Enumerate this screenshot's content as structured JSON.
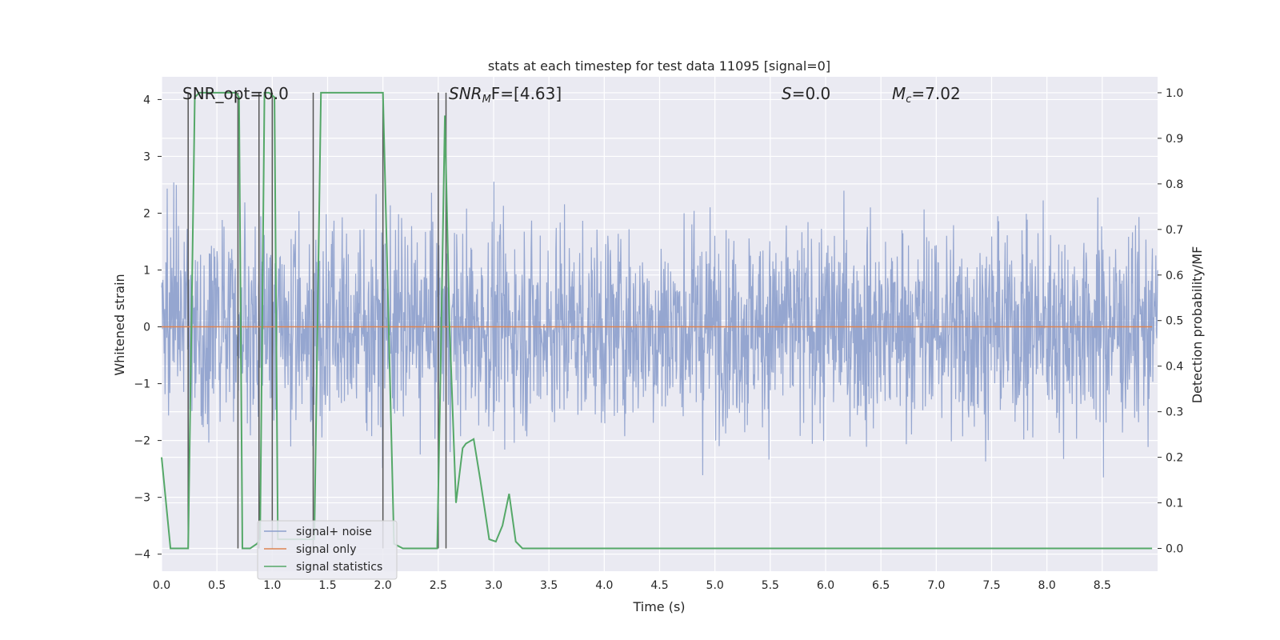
{
  "chart_data": {
    "type": "line",
    "title": "stats at each timestep for test data 11095 [signal=0]",
    "xlabel": "Time (s)",
    "ylabel_left": "Whitened strain",
    "ylabel_right": "Detection probability/MF",
    "xlim": [
      0.0,
      9.0
    ],
    "ylim_left": [
      -4.3,
      4.4
    ],
    "ylim_right": [
      -0.05,
      1.035
    ],
    "x_ticks": [
      "0.0",
      "0.5",
      "1.0",
      "1.5",
      "2.0",
      "2.5",
      "3.0",
      "3.5",
      "4.0",
      "4.5",
      "5.0",
      "5.5",
      "6.0",
      "6.5",
      "7.0",
      "7.5",
      "8.0",
      "8.5"
    ],
    "y_left_ticks": [
      "4",
      "3",
      "2",
      "1",
      "0",
      "−1",
      "−2",
      "−3",
      "−4"
    ],
    "y_right_ticks": [
      "1.0",
      "0.9",
      "0.8",
      "0.7",
      "0.6",
      "0.5",
      "0.4",
      "0.3",
      "0.2",
      "0.1",
      "0.0"
    ],
    "grid": true,
    "legend_position": "lower-left",
    "annotations": {
      "snr_opt": "SNR_opt=0.0",
      "snr_mf_label": "SNR",
      "snr_mf_sub": "M",
      "snr_mf_rest": "F=[4.63]",
      "s_label": "S",
      "s_rest": "=0.0",
      "mc_label": "M",
      "mc_sub": "c",
      "mc_rest": "=7.02"
    },
    "series": [
      {
        "name": "signal+ noise",
        "color": "#8c9fcc",
        "description_values": "whitened noise, approx range -3.9 to 3.9"
      },
      {
        "name": "signal only",
        "color": "#dd8452",
        "values": "constant 0"
      },
      {
        "name": "signal statistics",
        "color": "#55a868",
        "x": [
          0.0,
          0.08,
          0.15,
          0.24,
          0.3,
          0.34,
          0.5,
          0.67,
          0.7,
          0.73,
          0.8,
          0.86,
          0.89,
          0.93,
          0.97,
          1.02,
          1.05,
          1.38,
          1.44,
          1.55,
          2.0,
          2.1,
          2.18,
          2.3,
          2.49,
          2.52,
          2.56,
          2.6,
          2.66,
          2.72,
          2.75,
          2.82,
          2.88,
          2.96,
          3.02,
          3.08,
          3.14,
          3.2,
          3.26,
          3.35,
          9.0
        ],
        "y": [
          0.2,
          0.0,
          0.0,
          0.0,
          0.99,
          1.0,
          1.0,
          1.0,
          0.99,
          0.0,
          0.0,
          0.01,
          0.02,
          1.0,
          1.0,
          0.99,
          0.02,
          0.02,
          1.0,
          1.0,
          1.0,
          0.01,
          0.0,
          0.0,
          0.0,
          0.38,
          0.95,
          0.5,
          0.1,
          0.22,
          0.23,
          0.24,
          0.15,
          0.02,
          0.015,
          0.05,
          0.12,
          0.015,
          0.0,
          0.0,
          0.0
        ]
      }
    ],
    "vertical_markers_x": [
      0.24,
      0.69,
      0.88,
      1.0,
      1.37,
      2.0,
      2.5,
      2.57
    ]
  },
  "legend": [
    {
      "label": "signal+ noise",
      "color": "#8c9fcc"
    },
    {
      "label": "signal only",
      "color": "#dd8452"
    },
    {
      "label": "signal statistics",
      "color": "#55a868"
    }
  ]
}
